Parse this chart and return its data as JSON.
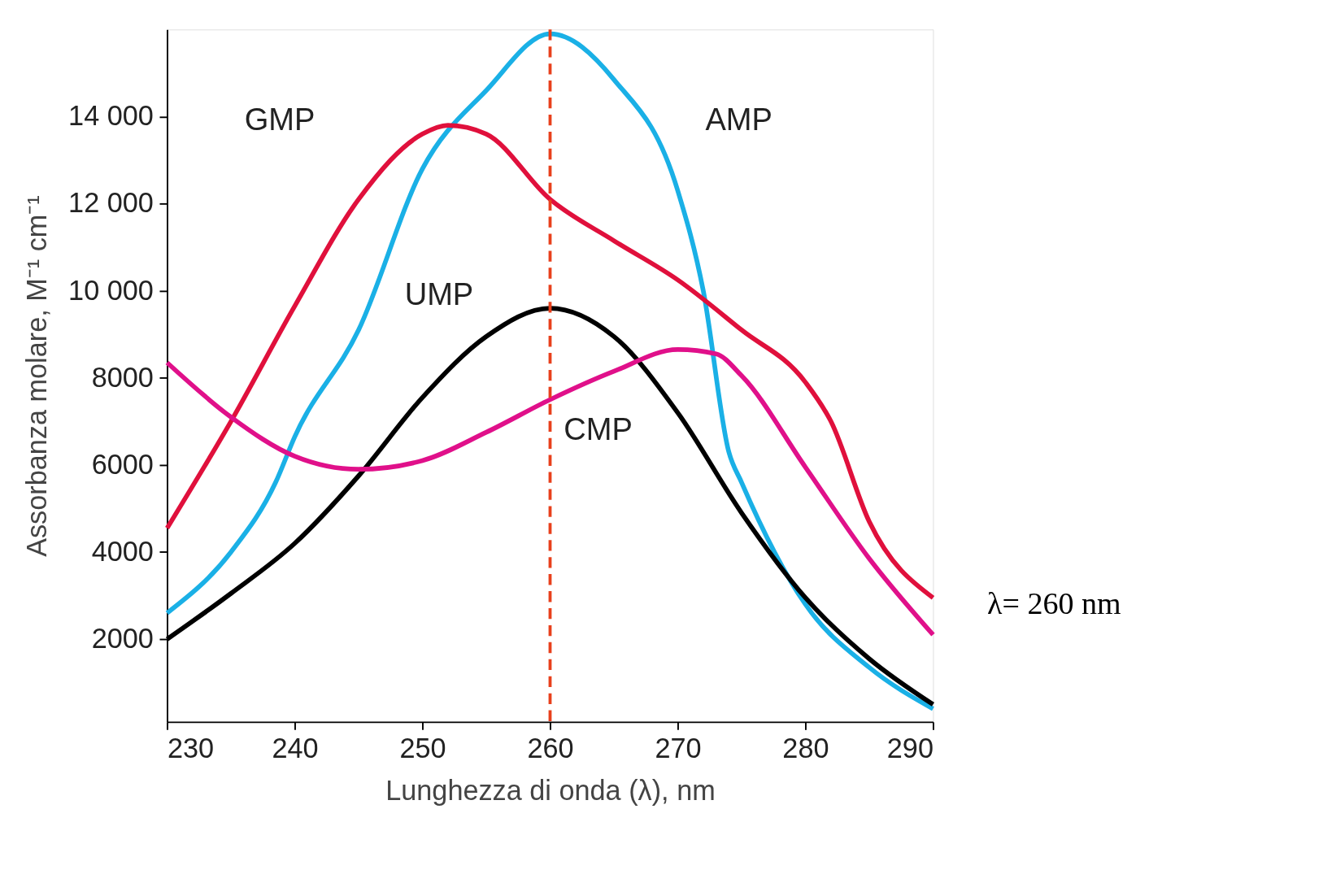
{
  "chart_data": {
    "type": "line",
    "xlabel": "Lunghezza di onda (λ), nm",
    "ylabel": "Assorbanza molare, M⁻¹ cm⁻¹",
    "x": [
      230,
      235,
      240,
      245,
      250,
      255,
      260,
      265,
      270,
      275,
      280,
      285,
      290
    ],
    "series": [
      {
        "name": "AMP",
        "color": "#1ab0e6",
        "x": [
          230,
          235,
          238.5,
          240,
          245,
          250,
          255,
          260,
          265,
          270,
          272,
          274,
          275,
          280,
          285,
          290
        ],
        "values": [
          2600,
          4000,
          5600,
          6650,
          9100,
          12800,
          14600,
          15900,
          14850,
          12300,
          10000,
          6300,
          5600,
          2800,
          1350,
          400
        ]
      },
      {
        "name": "GMP",
        "color": "#e0103c",
        "x": [
          230,
          235,
          240,
          245,
          250,
          252,
          255,
          260,
          265,
          270,
          275,
          280,
          282,
          285,
          290
        ],
        "values": [
          4550,
          7000,
          9650,
          12100,
          13600,
          13800,
          13600,
          12100,
          11150,
          10250,
          9100,
          7900,
          7000,
          4700,
          2950
        ]
      },
      {
        "name": "UMP",
        "color": "#000000",
        "values": [
          2000,
          3050,
          4200,
          5750,
          7550,
          8950,
          9600,
          8950,
          7200,
          4900,
          2950,
          1550,
          500
        ]
      },
      {
        "name": "CMP",
        "color": "#e0108a",
        "x": [
          230,
          235,
          240,
          245,
          250,
          255,
          260,
          265,
          270,
          273,
          275,
          280,
          285,
          290
        ],
        "values": [
          8350,
          7100,
          6200,
          5900,
          6100,
          6750,
          7500,
          8150,
          8650,
          8550,
          8050,
          5950,
          3850,
          2100
        ]
      }
    ],
    "xlim": [
      230,
      290
    ],
    "xticks": [
      230,
      240,
      250,
      260,
      270,
      280,
      290
    ],
    "ylim": [
      100,
      16000
    ],
    "yticks": [
      2000,
      4000,
      6000,
      8000,
      {
        "value": 10000,
        "label": "10 000"
      },
      {
        "value": 12000,
        "label": "12 000"
      },
      {
        "value": 14000,
        "label": "14 000"
      }
    ],
    "ref_lines": [
      {
        "axis": "x",
        "value": 260,
        "color": "#e8401c",
        "line_style": "dashed"
      }
    ],
    "annotations": [
      "λ= 260 nm"
    ],
    "grid": false,
    "legend": false,
    "line_style": "solid",
    "marker": "none"
  }
}
